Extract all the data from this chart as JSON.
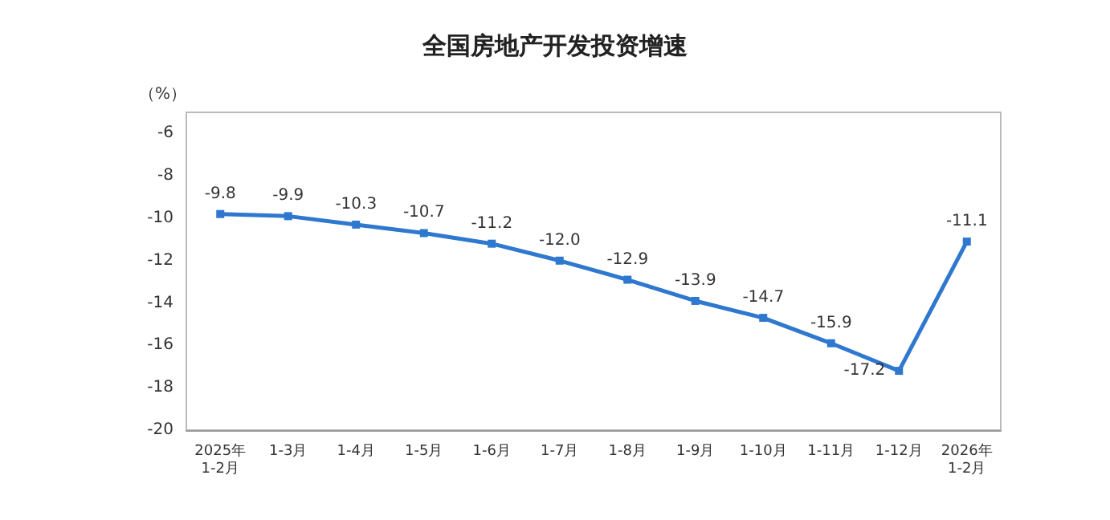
{
  "chart_data": {
    "type": "line",
    "title": "全国房地产开发投资增速",
    "ylabel": "（%）",
    "categories": [
      "2025年\n1-2月",
      "1-3月",
      "1-4月",
      "1-5月",
      "1-6月",
      "1-7月",
      "1-8月",
      "1-9月",
      "1-10月",
      "1-11月",
      "1-12月",
      "2026年\n1-2月"
    ],
    "series": [
      {
        "color": "#2f78cf",
        "values": [
          -9.8,
          -9.9,
          -10.3,
          -10.7,
          -11.2,
          -12.0,
          -12.9,
          -13.9,
          -14.7,
          -15.9,
          -17.2,
          -11.1
        ],
        "value_labels": [
          "-9.8",
          "-9.9",
          "-10.3",
          "-10.7",
          "-11.2",
          "-12.0",
          "-12.9",
          "-13.9",
          "-14.7",
          "-15.9",
          "-17.2",
          "-11.1"
        ]
      }
    ],
    "ylim": [
      -20,
      -5
    ],
    "yticks": [
      -20,
      -18,
      -16,
      -14,
      -12,
      -10,
      -8,
      -6
    ],
    "grid": false,
    "marker": "square",
    "line_style": "solid"
  }
}
